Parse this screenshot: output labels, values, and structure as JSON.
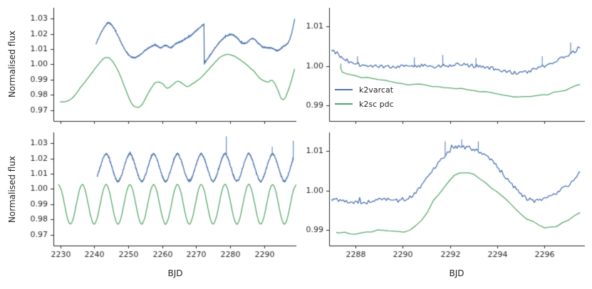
{
  "axes": {
    "ylabel": "Normalised flux",
    "xlabel": "BJD"
  },
  "legend": {
    "entries": [
      {
        "label": "k2varcat",
        "color": "#4c72b0"
      },
      {
        "label": "k2sc pdc",
        "color": "#55a868"
      }
    ]
  },
  "style": {
    "axis_color": "#262626",
    "background": "#ffffff"
  },
  "chart_data": [
    {
      "id": "top-left",
      "type": "line",
      "xlim": [
        2228,
        2299.5
      ],
      "ylim": [
        0.963,
        1.037
      ],
      "xticks": [
        2230,
        2240,
        2250,
        2260,
        2270,
        2280,
        2290
      ],
      "xticklabels": [
        "2230",
        "2240",
        "2250",
        "2260",
        "2270",
        "2280",
        "2290"
      ],
      "show_xticklabels": false,
      "yticks": [
        0.97,
        0.98,
        0.99,
        1.0,
        1.01,
        1.02,
        1.03
      ],
      "yticklabels": [
        "0.97",
        "0.98",
        "0.99",
        "1.00",
        "1.01",
        "1.02",
        "1.03"
      ],
      "series": [
        {
          "name": "k2sc pdc",
          "color": "#55a868",
          "smooth": true,
          "noise": 0.00015,
          "segments": [
            {
              "x": [
                2230,
                2232,
                2234,
                2236,
                2238,
                2240,
                2242,
                2243.5,
                2245,
                2247,
                2249,
                2251,
                2252.5,
                2254,
                2256,
                2258,
                2260,
                2261.5,
                2263,
                2264.5,
                2266,
                2267.5,
                2269,
                2271,
                2273,
                2275,
                2277,
                2279,
                2281,
                2283,
                2285,
                2287,
                2289,
                2291,
                2292.5,
                2294,
                2295,
                2296,
                2297.5,
                2299
              ],
              "y": [
                0.9755,
                0.976,
                0.979,
                0.985,
                0.9905,
                0.9965,
                1.002,
                1.0045,
                1.003,
                0.996,
                0.985,
                0.9745,
                0.972,
                0.9735,
                0.9815,
                0.988,
                0.9875,
                0.9845,
                0.9865,
                0.989,
                0.9875,
                0.9855,
                0.9875,
                0.9905,
                0.995,
                1.0,
                1.0045,
                1.0065,
                1.0055,
                1.003,
                0.9995,
                0.9955,
                0.9905,
                0.9885,
                0.9895,
                0.9835,
                0.978,
                0.9775,
                0.9855,
                0.997
              ]
            }
          ]
        },
        {
          "name": "k2varcat",
          "color": "#4c72b0",
          "smooth": true,
          "noise": 0.0004,
          "segments": [
            {
              "x": [
                2240.5,
                2242,
                2243.5,
                2244.5,
                2246,
                2248,
                2250,
                2251.5,
                2253,
                2255,
                2256.5,
                2258,
                2259.5,
                2261,
                2262.5,
                2264,
                2265.5,
                2267,
                2268.5,
                2270,
                2271.3,
                2272.3
              ],
              "y": [
                1.0135,
                1.0205,
                1.026,
                1.027,
                1.023,
                1.014,
                1.0065,
                1.0045,
                1.0055,
                1.009,
                1.0115,
                1.0125,
                1.011,
                1.0125,
                1.011,
                1.0135,
                1.015,
                1.017,
                1.019,
                1.022,
                1.0245,
                1.0265
              ]
            },
            {
              "x": [
                2272.4,
                2273.5,
                2275,
                2276.5,
                2277.5,
                2279,
                2280.5,
                2282,
                2283.5,
                2285,
                2286.5,
                2288,
                2289.5,
                2291,
                2292.5,
                2294,
                2295.5,
                2297,
                2298,
                2299
              ],
              "y": [
                1.0005,
                1.004,
                1.009,
                1.0135,
                1.016,
                1.0185,
                1.0195,
                1.0175,
                1.014,
                1.0145,
                1.017,
                1.0145,
                1.0115,
                1.011,
                1.0105,
                1.009,
                1.0115,
                1.014,
                1.0195,
                1.0295
              ]
            }
          ]
        }
      ]
    },
    {
      "id": "top-right",
      "type": "line",
      "xlim": [
        2286.9,
        2297.7
      ],
      "ylim": [
        0.986,
        1.0148
      ],
      "xticks": [
        2288,
        2290,
        2292,
        2294,
        2296
      ],
      "xticklabels": [
        "2288",
        "2290",
        "2292",
        "2294",
        "2296"
      ],
      "show_xticklabels": false,
      "yticks": [
        0.99,
        1.0,
        1.01
      ],
      "yticklabels": [
        "0.99",
        "1.00",
        "1.01"
      ],
      "series": [
        {
          "name": "k2sc pdc",
          "color": "#55a868",
          "smooth": true,
          "noise": 0.0002,
          "segments": [
            {
              "x": [
                2287.4,
                2287.45,
                2288.0,
                2288.5,
                2289.0,
                2289.5,
                2290.0,
                2290.5,
                2291.0,
                2291.5,
                2292.0,
                2292.5,
                2293.0,
                2293.5,
                2294.0,
                2294.5,
                2294.9,
                2295.4,
                2295.9,
                2296.4,
                2296.9,
                2297.5
              ],
              "y": [
                1.0005,
                0.9985,
                0.9975,
                0.997,
                0.9965,
                0.996,
                0.9955,
                0.9952,
                0.995,
                0.9948,
                0.9945,
                0.994,
                0.9938,
                0.9933,
                0.9928,
                0.9924,
                0.9921,
                0.9922,
                0.9926,
                0.9932,
                0.994,
                0.9953
              ]
            }
          ]
        },
        {
          "name": "k2varcat",
          "color": "#4c72b0",
          "smooth": true,
          "noise": 0.0005,
          "segments": [
            {
              "x": [
                2287.0,
                2287.3,
                2287.6,
                2288.0,
                2288.4,
                2288.8,
                2289.2,
                2289.6,
                2290.0,
                2290.4,
                2290.8,
                2291.2,
                2291.6,
                2292.0,
                2292.4,
                2292.8,
                2293.2,
                2293.6,
                2294.0,
                2294.4,
                2294.8,
                2295.2,
                2295.6,
                2296.0,
                2296.4,
                2296.8,
                2297.2,
                2297.5
              ],
              "y": [
                1.0045,
                1.0028,
                1.0015,
                1.0006,
                1.0001,
                0.9999,
                0.9999,
                1.0,
                0.9999,
                1.0,
                1.0001,
                0.9999,
                1.0001,
                1.0,
                1.0004,
                1.0002,
                0.9999,
                0.9996,
                0.9991,
                0.9987,
                0.9982,
                0.9985,
                0.9991,
                0.9999,
                1.0009,
                1.0021,
                1.0035,
                1.0048
              ]
            }
          ],
          "spikes": [
            {
              "x": 2288.1,
              "y": 1.0025
            },
            {
              "x": 2290.5,
              "y": 1.0022
            },
            {
              "x": 2291.7,
              "y": 1.0028
            },
            {
              "x": 2293.1,
              "y": 1.002
            },
            {
              "x": 2295.9,
              "y": 1.0025
            },
            {
              "x": 2297.1,
              "y": 1.006
            }
          ]
        }
      ]
    },
    {
      "id": "bottom-left",
      "type": "line",
      "xlim": [
        2228,
        2299.5
      ],
      "ylim": [
        0.963,
        1.037
      ],
      "xticks": [
        2230,
        2240,
        2250,
        2260,
        2270,
        2280,
        2290
      ],
      "xticklabels": [
        "2230",
        "2240",
        "2250",
        "2260",
        "2270",
        "2280",
        "2290"
      ],
      "show_xticklabels": true,
      "yticks": [
        0.97,
        0.98,
        0.99,
        1.0,
        1.01,
        1.02,
        1.03
      ],
      "yticklabels": [
        "0.97",
        "0.98",
        "0.99",
        "1.00",
        "1.01",
        "1.02",
        "1.03"
      ],
      "series": [
        {
          "name": "k2sc pdc",
          "color": "#55a868",
          "smooth": true,
          "noise": 0.0002,
          "segments": [
            {
              "x0": 2229.5,
              "dx": 0.875,
              "y": [
                1.003,
                0.999,
                0.99,
                0.981,
                0.977,
                0.981,
                0.99,
                0.999,
                1.003,
                0.999,
                0.99,
                0.981,
                0.977,
                0.981,
                0.99,
                0.999,
                1.003,
                0.999,
                0.99,
                0.981,
                0.977,
                0.981,
                0.99,
                0.999,
                1.003,
                0.999,
                0.99,
                0.981,
                0.977,
                0.981,
                0.99,
                0.999,
                1.003,
                0.999,
                0.99,
                0.981,
                0.977,
                0.981,
                0.99,
                0.999,
                1.003,
                0.999,
                0.99,
                0.981,
                0.977,
                0.981,
                0.99,
                0.999,
                1.003,
                0.999,
                0.99,
                0.981,
                0.977,
                0.981,
                0.99,
                0.999,
                1.003,
                0.999,
                0.99,
                0.981,
                0.977,
                0.981,
                0.99,
                0.999,
                1.003,
                0.999,
                0.99,
                0.981,
                0.977,
                0.981,
                0.99,
                0.999,
                1.003,
                0.999,
                0.99,
                0.981,
                0.977,
                0.981,
                0.99,
                0.999,
                1.003
              ]
            }
          ]
        },
        {
          "name": "k2varcat",
          "color": "#4c72b0",
          "smooth": true,
          "noise": 0.0006,
          "segments": [
            {
              "x0": 2240.875,
              "dx": 0.875,
              "y": [
                1.008,
                1.014,
                1.02,
                1.023,
                1.02,
                1.014,
                1.008,
                1.005,
                1.008,
                1.014,
                1.02,
                1.023,
                1.02,
                1.014,
                1.008,
                1.005,
                1.008,
                1.014,
                1.02,
                1.023,
                1.02,
                1.014,
                1.008,
                1.005,
                1.008,
                1.014,
                1.02,
                1.023,
                1.02,
                1.014,
                1.008,
                1.005,
                1.008,
                1.014,
                1.02,
                1.023,
                1.02,
                1.014,
                1.008,
                1.005,
                1.008,
                1.014,
                1.02,
                1.023,
                1.02,
                1.014,
                1.008,
                1.005,
                1.008,
                1.014,
                1.02,
                1.023,
                1.02,
                1.014,
                1.008,
                1.005,
                1.008,
                1.014,
                1.02,
                1.023,
                1.02,
                1.014,
                1.008,
                1.005,
                1.008,
                1.014,
                1.02
              ]
            }
          ],
          "spikes": [
            {
              "x": 2278.9,
              "y": 1.0345
            },
            {
              "x": 2292.4,
              "y": 1.0275
            },
            {
              "x": 2298.6,
              "y": 1.0315
            }
          ]
        }
      ]
    },
    {
      "id": "bottom-right",
      "type": "line",
      "xlim": [
        2286.9,
        2297.7
      ],
      "ylim": [
        0.986,
        1.0148
      ],
      "xticks": [
        2288,
        2290,
        2292,
        2294,
        2296
      ],
      "xticklabels": [
        "2288",
        "2290",
        "2292",
        "2294",
        "2296"
      ],
      "show_xticklabels": true,
      "yticks": [
        0.99,
        1.0,
        1.01
      ],
      "yticklabels": [
        "0.99",
        "1.00",
        "1.01"
      ],
      "series": [
        {
          "name": "k2sc pdc",
          "color": "#55a868",
          "smooth": true,
          "noise": 0.0002,
          "segments": [
            {
              "x": [
                2287.2,
                2288.0,
                2288.7,
                2289.2,
                2289.8,
                2290.3,
                2290.8,
                2291.3,
                2291.8,
                2292.2,
                2292.6,
                2293.0,
                2293.5,
                2294.0,
                2294.5,
                2295.0,
                2295.5,
                2296.0,
                2296.5,
                2297.0,
                2297.5
              ],
              "y": [
                0.9895,
                0.989,
                0.9895,
                0.99,
                0.9895,
                0.99,
                0.9925,
                0.997,
                1.001,
                1.004,
                1.0045,
                1.004,
                1.002,
                0.9995,
                0.997,
                0.994,
                0.992,
                0.9905,
                0.991,
                0.9925,
                0.9945
              ]
            }
          ]
        },
        {
          "name": "k2varcat",
          "color": "#4c72b0",
          "smooth": true,
          "noise": 0.0005,
          "segments": [
            {
              "x": [
                2287.0,
                2287.5,
                2288.0,
                2288.5,
                2289.0,
                2289.5,
                2290.0,
                2290.5,
                2291.0,
                2291.5,
                2292.0,
                2292.3,
                2292.7,
                2293.0,
                2293.5,
                2294.0,
                2294.5,
                2295.0,
                2295.5,
                2296.0,
                2296.5,
                2297.0,
                2297.5
              ],
              "y": [
                0.998,
                0.9975,
                0.997,
                0.997,
                0.998,
                0.9975,
                0.9975,
                0.999,
                1.003,
                1.007,
                1.01,
                1.011,
                1.011,
                1.0105,
                1.009,
                1.006,
                1.0025,
                0.999,
                0.9975,
                0.998,
                0.9995,
                1.0015,
                1.0045
              ]
            }
          ],
          "spikes": [
            {
              "x": 2291.8,
              "y": 1.0125
            },
            {
              "x": 2292.5,
              "y": 1.013
            },
            {
              "x": 2293.2,
              "y": 1.0125
            }
          ]
        }
      ]
    }
  ]
}
